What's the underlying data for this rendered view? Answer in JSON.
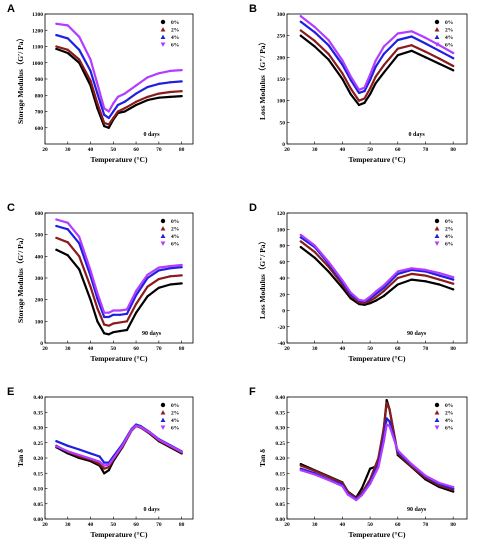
{
  "colors": {
    "0%": "#000000",
    "2%": "#8b1a1a",
    "4%": "#1f1fe0",
    "6%": "#b23cff"
  },
  "chart_data": [
    {
      "id": "A",
      "type": "line",
      "letter": "A",
      "xlabel": "Temperature (°C)",
      "ylabel": "Storage Modulus（G′/ Pa）",
      "xlim": [
        20,
        85
      ],
      "ylim": [
        500,
        1300
      ],
      "xticks": [
        20,
        30,
        40,
        50,
        60,
        70,
        80
      ],
      "yticks": [
        600,
        700,
        800,
        900,
        1000,
        1100,
        1200,
        1300
      ],
      "note": "0 days",
      "legend_placement": "top-right",
      "x": [
        25,
        30,
        35,
        40,
        43,
        46,
        48,
        50,
        52,
        55,
        60,
        65,
        70,
        75,
        80
      ],
      "series": [
        {
          "name": "0%",
          "values": [
            1085,
            1060,
            1000,
            860,
            720,
            610,
            600,
            650,
            690,
            700,
            740,
            770,
            785,
            790,
            795
          ]
        },
        {
          "name": "2%",
          "values": [
            1100,
            1080,
            1020,
            890,
            750,
            630,
            620,
            660,
            700,
            720,
            760,
            790,
            810,
            820,
            825
          ]
        },
        {
          "name": "4%",
          "values": [
            1170,
            1150,
            1080,
            950,
            810,
            680,
            660,
            700,
            740,
            760,
            810,
            850,
            870,
            880,
            885
          ]
        },
        {
          "name": "6%",
          "values": [
            1240,
            1230,
            1160,
            1020,
            870,
            720,
            700,
            750,
            790,
            810,
            860,
            910,
            935,
            950,
            955
          ]
        }
      ]
    },
    {
      "id": "B",
      "type": "line",
      "letter": "B",
      "xlabel": "Temperature (°C)",
      "ylabel": "Loss Modulus（G″/ Pa）",
      "xlim": [
        20,
        85
      ],
      "ylim": [
        0,
        300
      ],
      "xticks": [
        20,
        30,
        40,
        50,
        60,
        70,
        80
      ],
      "yticks": [
        0,
        50,
        100,
        150,
        200,
        250,
        300
      ],
      "note": "0 days",
      "legend_placement": "top-right",
      "x": [
        25,
        30,
        35,
        40,
        43,
        46,
        48,
        50,
        52,
        55,
        60,
        65,
        70,
        75,
        80
      ],
      "series": [
        {
          "name": "0%",
          "values": [
            250,
            225,
            195,
            150,
            115,
            90,
            95,
            115,
            140,
            165,
            205,
            215,
            200,
            185,
            170
          ]
        },
        {
          "name": "2%",
          "values": [
            262,
            238,
            208,
            163,
            128,
            100,
            105,
            128,
            155,
            182,
            220,
            228,
            213,
            197,
            180
          ]
        },
        {
          "name": "4%",
          "values": [
            282,
            258,
            228,
            183,
            148,
            118,
            122,
            148,
            178,
            208,
            240,
            248,
            232,
            215,
            198
          ]
        },
        {
          "name": "6%",
          "values": [
            295,
            270,
            240,
            193,
            156,
            125,
            130,
            160,
            192,
            225,
            255,
            260,
            245,
            228,
            210
          ]
        }
      ]
    },
    {
      "id": "C",
      "type": "line",
      "letter": "C",
      "xlabel": "Temperature (°C)",
      "ylabel": "Storage Modulus（G′/ Pa）",
      "xlim": [
        20,
        85
      ],
      "ylim": [
        0,
        600
      ],
      "xticks": [
        20,
        30,
        40,
        50,
        60,
        70,
        80
      ],
      "yticks": [
        0,
        100,
        200,
        300,
        400,
        500,
        600
      ],
      "note": "90 days",
      "legend_placement": "top-right",
      "x": [
        25,
        30,
        35,
        40,
        43,
        46,
        48,
        50,
        53,
        56,
        60,
        65,
        70,
        75,
        80
      ],
      "series": [
        {
          "name": "0%",
          "values": [
            430,
            405,
            340,
            200,
            100,
            45,
            40,
            50,
            55,
            60,
            140,
            215,
            255,
            270,
            275
          ]
        },
        {
          "name": "2%",
          "values": [
            485,
            465,
            400,
            260,
            160,
            85,
            80,
            90,
            95,
            100,
            180,
            260,
            295,
            308,
            312
          ]
        },
        {
          "name": "4%",
          "values": [
            540,
            525,
            460,
            310,
            205,
            120,
            120,
            130,
            130,
            135,
            220,
            300,
            335,
            345,
            350
          ]
        },
        {
          "name": "6%",
          "values": [
            570,
            555,
            490,
            335,
            230,
            140,
            140,
            150,
            150,
            155,
            240,
            315,
            348,
            355,
            360
          ]
        }
      ]
    },
    {
      "id": "D",
      "type": "line",
      "letter": "D",
      "xlabel": "Temperature (°C)",
      "ylabel": "Loss Modulus（G″/ Pa）",
      "xlim": [
        20,
        85
      ],
      "ylim": [
        -40,
        120
      ],
      "xticks": [
        20,
        30,
        40,
        50,
        60,
        70,
        80
      ],
      "yticks": [
        -40,
        -20,
        0,
        20,
        40,
        60,
        80,
        100,
        120
      ],
      "note": "90 days",
      "legend_placement": "top-right",
      "x": [
        25,
        30,
        35,
        40,
        43,
        46,
        48,
        50,
        52,
        55,
        60,
        65,
        70,
        75,
        80
      ],
      "series": [
        {
          "name": "0%",
          "values": [
            78,
            65,
            48,
            28,
            15,
            8,
            7,
            9,
            12,
            18,
            32,
            38,
            36,
            32,
            26
          ]
        },
        {
          "name": "2%",
          "values": [
            85,
            72,
            54,
            32,
            18,
            10,
            9,
            12,
            16,
            24,
            40,
            45,
            43,
            38,
            33
          ]
        },
        {
          "name": "4%",
          "values": [
            90,
            78,
            58,
            35,
            20,
            12,
            11,
            15,
            20,
            28,
            45,
            50,
            48,
            43,
            38
          ]
        },
        {
          "name": "6%",
          "values": [
            93,
            80,
            60,
            37,
            22,
            13,
            12,
            17,
            23,
            31,
            48,
            52,
            50,
            46,
            41
          ]
        }
      ]
    },
    {
      "id": "E",
      "type": "line",
      "letter": "E",
      "xlabel": "Temperature (°C)",
      "ylabel": "Tan δ",
      "xlim": [
        20,
        85
      ],
      "ylim": [
        0.0,
        0.4
      ],
      "xticks": [
        20,
        30,
        40,
        50,
        60,
        70,
        80
      ],
      "yticks": [
        0.0,
        0.05,
        0.1,
        0.15,
        0.2,
        0.25,
        0.3,
        0.35,
        0.4
      ],
      "note": "0 days",
      "legend_placement": "top-right",
      "x": [
        25,
        30,
        35,
        40,
        44,
        46,
        48,
        50,
        54,
        58,
        60,
        62,
        66,
        70,
        75,
        80
      ],
      "series": [
        {
          "name": "0%",
          "values": [
            0.235,
            0.215,
            0.2,
            0.19,
            0.175,
            0.15,
            0.16,
            0.19,
            0.235,
            0.29,
            0.305,
            0.3,
            0.28,
            0.255,
            0.235,
            0.215
          ]
        },
        {
          "name": "2%",
          "values": [
            0.24,
            0.22,
            0.205,
            0.195,
            0.18,
            0.165,
            0.17,
            0.195,
            0.238,
            0.29,
            0.305,
            0.3,
            0.282,
            0.258,
            0.238,
            0.218
          ]
        },
        {
          "name": "4%",
          "values": [
            0.255,
            0.24,
            0.228,
            0.215,
            0.205,
            0.185,
            0.185,
            0.205,
            0.245,
            0.295,
            0.31,
            0.305,
            0.285,
            0.262,
            0.242,
            0.222
          ]
        },
        {
          "name": "6%",
          "values": [
            0.238,
            0.222,
            0.21,
            0.198,
            0.188,
            0.175,
            0.178,
            0.198,
            0.24,
            0.292,
            0.306,
            0.302,
            0.284,
            0.26,
            0.24,
            0.22
          ]
        }
      ]
    },
    {
      "id": "F",
      "type": "line",
      "letter": "F",
      "xlabel": "Temperature (°C)",
      "ylabel": "Tan δ",
      "xlim": [
        20,
        85
      ],
      "ylim": [
        0.0,
        0.4
      ],
      "xticks": [
        20,
        30,
        40,
        50,
        60,
        70,
        80
      ],
      "yticks": [
        0.0,
        0.05,
        0.1,
        0.15,
        0.2,
        0.25,
        0.3,
        0.35,
        0.4
      ],
      "note": "90 days",
      "legend_placement": "top-right",
      "x": [
        25,
        30,
        35,
        40,
        42,
        45,
        47,
        50,
        53,
        55,
        56,
        57,
        60,
        65,
        70,
        75,
        80
      ],
      "series": [
        {
          "name": "0%",
          "values": [
            0.18,
            0.16,
            0.14,
            0.12,
            0.09,
            0.07,
            0.1,
            0.165,
            0.175,
            0.3,
            0.39,
            0.36,
            0.21,
            0.17,
            0.13,
            0.105,
            0.09
          ]
        },
        {
          "name": "2%",
          "values": [
            0.175,
            0.158,
            0.138,
            0.118,
            0.088,
            0.068,
            0.085,
            0.13,
            0.2,
            0.3,
            0.38,
            0.36,
            0.215,
            0.172,
            0.135,
            0.11,
            0.095
          ]
        },
        {
          "name": "4%",
          "values": [
            0.165,
            0.15,
            0.13,
            0.112,
            0.082,
            0.065,
            0.08,
            0.12,
            0.18,
            0.27,
            0.33,
            0.32,
            0.22,
            0.178,
            0.14,
            0.115,
            0.1
          ]
        },
        {
          "name": "6%",
          "values": [
            0.16,
            0.146,
            0.128,
            0.108,
            0.08,
            0.062,
            0.078,
            0.115,
            0.17,
            0.255,
            0.31,
            0.305,
            0.225,
            0.18,
            0.142,
            0.118,
            0.105
          ]
        }
      ]
    }
  ]
}
